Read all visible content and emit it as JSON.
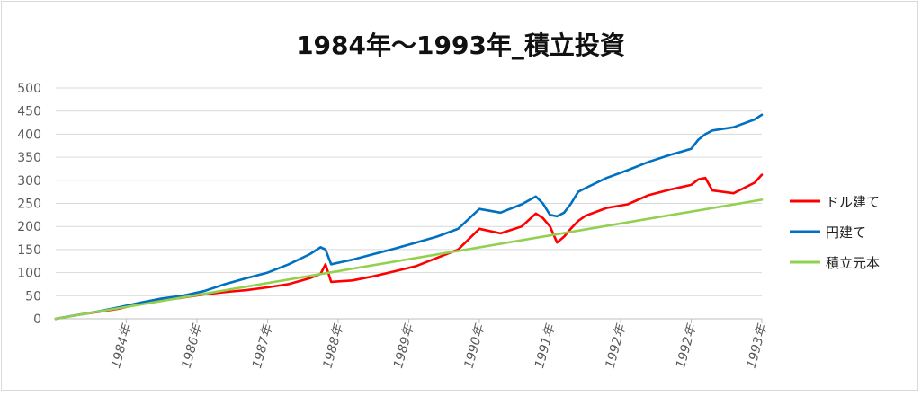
{
  "chart_data": {
    "type": "line",
    "title": "1984年～1993年_積立投資",
    "xlabel": "",
    "ylabel": "",
    "ylim": [
      0,
      500
    ],
    "yticks": [
      0,
      50,
      100,
      150,
      200,
      250,
      300,
      350,
      400,
      450,
      500
    ],
    "xlim": [
      0,
      100
    ],
    "xtick_labels": [
      "1984年",
      "1986年",
      "1987年",
      "1988年",
      "1989年",
      "1990年",
      "1991年",
      "1992年",
      "1992年",
      "1993年"
    ],
    "xtick_positions": [
      10,
      20,
      30,
      40,
      50,
      60,
      70,
      80,
      90,
      100
    ],
    "grid": true,
    "legend_position": "right",
    "series": [
      {
        "name": "ドル建て",
        "color": "#ff0000",
        "x": [
          0,
          3,
          6,
          9,
          12,
          15,
          18,
          21,
          24,
          27,
          30,
          33,
          36,
          37.5,
          38.2,
          39,
          42,
          45,
          48,
          51,
          54,
          57,
          60,
          63,
          66,
          68,
          69,
          70,
          71,
          72,
          73,
          74,
          75,
          78,
          81,
          84,
          87,
          90,
          91,
          92,
          93,
          96,
          99,
          100
        ],
        "values": [
          0,
          8,
          15,
          22,
          33,
          40,
          46,
          53,
          58,
          62,
          68,
          75,
          88,
          97,
          118,
          80,
          83,
          92,
          103,
          114,
          132,
          150,
          195,
          185,
          200,
          228,
          218,
          200,
          165,
          178,
          196,
          212,
          223,
          240,
          248,
          268,
          280,
          290,
          302,
          305,
          278,
          272,
          295,
          312
        ]
      },
      {
        "name": "円建て",
        "color": "#0070c0",
        "x": [
          0,
          3,
          6,
          9,
          12,
          15,
          18,
          21,
          24,
          27,
          30,
          33,
          36,
          37.5,
          38.2,
          39,
          42,
          45,
          48,
          51,
          54,
          57,
          60,
          63,
          66,
          68,
          69,
          70,
          71,
          72,
          73,
          74,
          75,
          78,
          81,
          84,
          87,
          90,
          91,
          92,
          93,
          96,
          99,
          100
        ],
        "values": [
          0,
          8,
          16,
          25,
          35,
          44,
          50,
          60,
          75,
          88,
          100,
          118,
          140,
          155,
          150,
          118,
          128,
          140,
          152,
          165,
          178,
          195,
          238,
          230,
          248,
          265,
          250,
          225,
          222,
          230,
          250,
          275,
          283,
          305,
          322,
          340,
          355,
          368,
          388,
          400,
          408,
          415,
          432,
          442
        ]
      },
      {
        "name": "積立元本",
        "color": "#92d050",
        "x": [
          0,
          100
        ],
        "values": [
          0,
          258
        ]
      }
    ]
  }
}
